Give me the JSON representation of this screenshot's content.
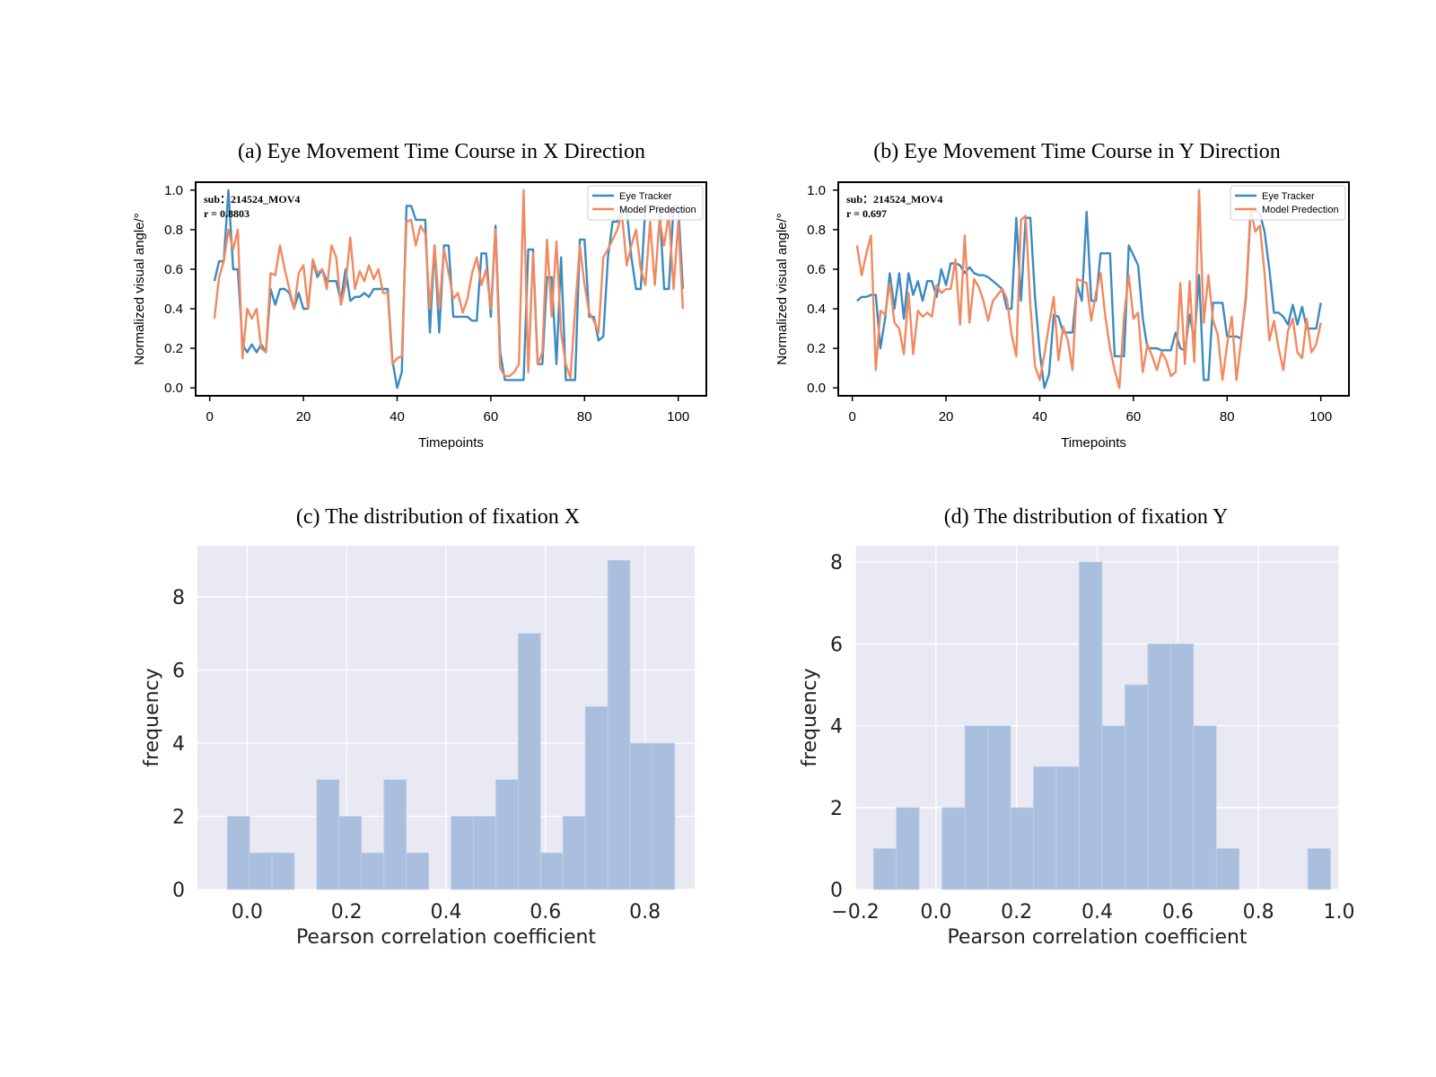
{
  "figure": {
    "panels": [
      {
        "id": "a",
        "title": "(a) Eye Movement Time Course in X Direction"
      },
      {
        "id": "b",
        "title": "(b) Eye Movement Time Course in Y Direction"
      },
      {
        "id": "c",
        "title": "(c) The distribution of fixation X"
      },
      {
        "id": "d",
        "title": "(d) The distribution of fixation Y"
      }
    ]
  },
  "colors": {
    "eye_tracker": "#3b8bc2",
    "model": "#f2895f",
    "hist_fill": "#a9bfdd",
    "hist_bg": "#e8e9f3"
  },
  "chart_data": [
    {
      "type": "line",
      "title": "(a) Eye Movement Time Course in X Direction",
      "xlabel": "Timepoints",
      "ylabel": "Normalized visual angle/°",
      "xlim": [
        -3,
        106
      ],
      "ylim": [
        -0.04,
        1.04
      ],
      "xticks": [
        0,
        20,
        40,
        60,
        80,
        100
      ],
      "yticks": [
        0.0,
        0.2,
        0.4,
        0.6,
        0.8,
        1.0
      ],
      "annotation": {
        "sub_label": "sub：",
        "sub_value": "214524_MOV4",
        "r": "r = 0.8803"
      },
      "legend": {
        "position": "top-right",
        "entries": [
          "Eye Tracker",
          "Model Predection"
        ]
      },
      "series": [
        {
          "name": "Eye Tracker",
          "color": "#3b8bc2",
          "values": [
            0.54,
            0.64,
            0.64,
            1.0,
            0.6,
            0.6,
            0.22,
            0.18,
            0.22,
            0.18,
            0.22,
            0.18,
            0.5,
            0.42,
            0.5,
            0.5,
            0.48,
            0.4,
            0.48,
            0.4,
            0.4,
            0.64,
            0.56,
            0.6,
            0.54,
            0.54,
            0.54,
            0.44,
            0.6,
            0.44,
            0.46,
            0.46,
            0.48,
            0.46,
            0.5,
            0.5,
            0.5,
            0.5,
            0.14,
            0.0,
            0.08,
            0.92,
            0.92,
            0.85,
            0.85,
            0.85,
            0.28,
            0.72,
            0.28,
            0.72,
            0.72,
            0.36,
            0.36,
            0.36,
            0.36,
            0.34,
            0.34,
            0.68,
            0.68,
            0.36,
            0.82,
            0.18,
            0.04,
            0.04,
            0.04,
            0.04,
            0.04,
            0.7,
            0.7,
            0.12,
            0.12,
            0.56,
            0.56,
            0.12,
            0.66,
            0.04,
            0.04,
            0.04,
            0.75,
            0.75,
            0.36,
            0.36,
            0.24,
            0.26,
            0.66,
            0.84,
            0.84,
            0.9,
            0.9,
            0.66,
            0.5,
            0.5,
            0.92,
            0.92,
            0.92,
            0.92,
            0.5,
            0.5,
            0.92,
            0.92,
            0.5
          ]
        },
        {
          "name": "Model Predection",
          "color": "#f2895f",
          "values": [
            0.35,
            0.56,
            0.64,
            0.8,
            0.7,
            0.8,
            0.15,
            0.4,
            0.35,
            0.4,
            0.2,
            0.18,
            0.58,
            0.57,
            0.72,
            0.6,
            0.5,
            0.4,
            0.58,
            0.62,
            0.4,
            0.65,
            0.58,
            0.6,
            0.5,
            0.72,
            0.66,
            0.42,
            0.52,
            0.76,
            0.5,
            0.59,
            0.54,
            0.62,
            0.55,
            0.6,
            0.48,
            0.48,
            0.12,
            0.15,
            0.16,
            0.84,
            0.85,
            0.72,
            0.82,
            0.78,
            0.4,
            0.72,
            0.4,
            0.7,
            0.58,
            0.45,
            0.48,
            0.38,
            0.45,
            0.58,
            0.66,
            0.52,
            0.6,
            0.4,
            0.8,
            0.1,
            0.06,
            0.06,
            0.08,
            0.12,
            1.0,
            0.08,
            0.68,
            0.12,
            0.18,
            0.75,
            0.36,
            0.74,
            0.28,
            0.12,
            0.05,
            0.4,
            0.72,
            0.52,
            0.38,
            0.34,
            0.28,
            0.66,
            0.7,
            0.75,
            0.8,
            0.88,
            0.62,
            0.72,
            0.8,
            0.6,
            0.52,
            0.84,
            0.52,
            0.85,
            0.72,
            0.88,
            0.5,
            0.84,
            0.4
          ]
        }
      ]
    },
    {
      "type": "line",
      "title": "(b) Eye Movement Time Course in Y Direction",
      "xlabel": "Timepoints",
      "ylabel": "Normalized visual angle/°",
      "xlim": [
        -3,
        106
      ],
      "ylim": [
        -0.04,
        1.04
      ],
      "xticks": [
        0,
        20,
        40,
        60,
        80,
        100
      ],
      "yticks": [
        0.0,
        0.2,
        0.4,
        0.6,
        0.8,
        1.0
      ],
      "annotation": {
        "sub_label": "sub：",
        "sub_value": "214524_MOV4",
        "r": "r = 0.697"
      },
      "legend": {
        "position": "top-right",
        "entries": [
          "Eye Tracker",
          "Model Predection"
        ]
      },
      "series": [
        {
          "name": "Eye Tracker",
          "color": "#3b8bc2",
          "values": [
            0.44,
            0.46,
            0.46,
            0.47,
            0.47,
            0.2,
            0.35,
            0.58,
            0.4,
            0.58,
            0.35,
            0.58,
            0.47,
            0.54,
            0.44,
            0.54,
            0.54,
            0.46,
            0.6,
            0.52,
            0.63,
            0.63,
            0.62,
            0.58,
            0.61,
            0.58,
            0.57,
            0.57,
            0.56,
            0.54,
            0.52,
            0.5,
            0.4,
            0.4,
            0.86,
            0.44,
            0.86,
            0.86,
            0.46,
            0.18,
            0.0,
            0.07,
            0.37,
            0.36,
            0.28,
            0.28,
            0.28,
            0.52,
            0.44,
            0.89,
            0.44,
            0.44,
            0.68,
            0.68,
            0.68,
            0.16,
            0.16,
            0.16,
            0.72,
            0.67,
            0.62,
            0.35,
            0.2,
            0.2,
            0.2,
            0.19,
            0.19,
            0.19,
            0.28,
            0.2,
            0.19,
            0.37,
            0.24,
            0.57,
            0.04,
            0.04,
            0.43,
            0.43,
            0.43,
            0.26,
            0.26,
            0.26,
            0.25,
            0.45,
            0.88,
            0.9,
            0.88,
            0.79,
            0.6,
            0.38,
            0.38,
            0.36,
            0.32,
            0.42,
            0.32,
            0.41,
            0.3,
            0.3,
            0.3,
            0.43
          ]
        },
        {
          "name": "Model Predection",
          "color": "#f2895f",
          "values": [
            0.72,
            0.57,
            0.68,
            0.77,
            0.09,
            0.39,
            0.37,
            0.53,
            0.33,
            0.3,
            0.17,
            0.48,
            0.17,
            0.39,
            0.36,
            0.38,
            0.36,
            0.52,
            0.48,
            0.5,
            0.5,
            0.65,
            0.32,
            0.77,
            0.33,
            0.55,
            0.51,
            0.44,
            0.34,
            0.44,
            0.47,
            0.5,
            0.45,
            0.27,
            0.16,
            0.85,
            0.87,
            0.42,
            0.11,
            0.04,
            0.17,
            0.32,
            0.46,
            0.14,
            0.31,
            0.24,
            0.09,
            0.55,
            0.54,
            0.53,
            0.34,
            0.48,
            0.58,
            0.36,
            0.2,
            0.09,
            0.0,
            0.36,
            0.57,
            0.35,
            0.38,
            0.08,
            0.22,
            0.16,
            0.09,
            0.18,
            0.14,
            0.06,
            0.08,
            0.53,
            0.12,
            0.54,
            0.13,
            1.0,
            0.33,
            0.57,
            0.34,
            0.27,
            0.04,
            0.22,
            0.36,
            0.04,
            0.24,
            0.47,
            0.91,
            0.79,
            0.82,
            0.58,
            0.24,
            0.34,
            0.2,
            0.09,
            0.29,
            0.35,
            0.18,
            0.15,
            0.35,
            0.18,
            0.22,
            0.33
          ]
        }
      ]
    },
    {
      "type": "bar",
      "title": "(c) The distribution of fixation X",
      "xlabel": "Pearson correlation coefficient",
      "ylabel": "frequency",
      "xlim": [
        -0.1,
        0.9
      ],
      "ylim": [
        0,
        9.4
      ],
      "xticks": [
        0.0,
        0.2,
        0.4,
        0.6,
        0.8
      ],
      "xtick_labels": [
        "0.0",
        "0.2",
        "0.4",
        "0.6",
        "0.8"
      ],
      "yticks": [
        0,
        2,
        4,
        6,
        8
      ],
      "bin_start": -0.04,
      "bin_width": 0.045,
      "counts": [
        2,
        1,
        1,
        0,
        3,
        2,
        1,
        3,
        1,
        0,
        2,
        2,
        3,
        7,
        1,
        2,
        5,
        9,
        4,
        4
      ]
    },
    {
      "type": "bar",
      "title": "(d) The distribution of fixation Y",
      "xlabel": "Pearson correlation coefficient",
      "ylabel": "frequency",
      "xlim": [
        -0.2,
        1.0
      ],
      "ylim": [
        0,
        8.4
      ],
      "xticks": [
        -0.2,
        0.0,
        0.2,
        0.4,
        0.6,
        0.8,
        1.0
      ],
      "xtick_labels": [
        "−0.2",
        "0.0",
        "0.2",
        "0.4",
        "0.6",
        "0.8",
        "1.0"
      ],
      "yticks": [
        0,
        2,
        4,
        6,
        8
      ],
      "bin_start": -0.155,
      "bin_width": 0.0567,
      "counts": [
        1,
        2,
        0,
        2,
        4,
        4,
        2,
        3,
        3,
        8,
        4,
        5,
        6,
        6,
        4,
        1,
        0,
        0,
        0,
        1
      ]
    }
  ]
}
